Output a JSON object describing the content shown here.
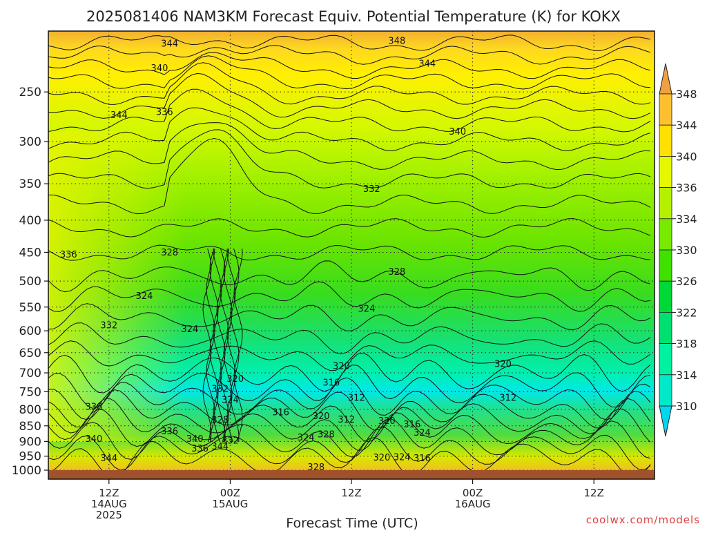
{
  "header": {
    "title": "2025081406 NAM3KM Forecast Equiv. Potential Temperature (K) for KOKX"
  },
  "footer": {
    "credit": "coolwx.com/models"
  },
  "chart_data": {
    "type": "heatmap",
    "title": "2025081406 NAM3KM Forecast Equiv. Potential Temperature (K) for KOKX",
    "xlabel": "Forecast Time (UTC)",
    "ylabel": "",
    "x_ticks": [
      {
        "lines": [
          "12Z",
          "14AUG",
          "2025"
        ],
        "hour": 6
      },
      {
        "lines": [
          "00Z",
          "15AUG"
        ],
        "hour": 18
      },
      {
        "lines": [
          "12Z"
        ],
        "hour": 30
      },
      {
        "lines": [
          "00Z",
          "16AUG"
        ],
        "hour": 42
      },
      {
        "lines": [
          "12Z"
        ],
        "hour": 54
      }
    ],
    "x_range_hours": [
      0,
      60
    ],
    "y_scale": "log-pressure",
    "y_ticks": [
      250,
      300,
      350,
      400,
      450,
      500,
      550,
      600,
      650,
      700,
      750,
      800,
      850,
      900,
      950,
      1000
    ],
    "y_range_hpa": [
      200,
      1000
    ],
    "grid": true,
    "colorbar": {
      "levels": [
        310,
        314,
        318,
        322,
        326,
        330,
        334,
        336,
        340,
        344,
        348
      ],
      "colors": [
        "#00d8f0",
        "#00eaca",
        "#00f2a0",
        "#00e070",
        "#00d838",
        "#40e000",
        "#78ea00",
        "#b4f000",
        "#e6f800",
        "#ffe000",
        "#ffc030",
        "#f0a040"
      ],
      "units": "K"
    },
    "contour_labels": [
      {
        "text": "344",
        "hour": 12.0,
        "hpa": 210
      },
      {
        "text": "348",
        "hour": 34.5,
        "hpa": 208
      },
      {
        "text": "344",
        "hour": 37.5,
        "hpa": 226
      },
      {
        "text": "340",
        "hour": 11.0,
        "hpa": 230
      },
      {
        "text": "344",
        "hour": 7.0,
        "hpa": 273
      },
      {
        "text": "336",
        "hour": 11.5,
        "hpa": 270
      },
      {
        "text": "340",
        "hour": 40.5,
        "hpa": 290
      },
      {
        "text": "332",
        "hour": 32.0,
        "hpa": 358
      },
      {
        "text": "336",
        "hour": 2.0,
        "hpa": 455
      },
      {
        "text": "328",
        "hour": 12.0,
        "hpa": 452
      },
      {
        "text": "328",
        "hour": 34.5,
        "hpa": 485
      },
      {
        "text": "324",
        "hour": 9.5,
        "hpa": 530
      },
      {
        "text": "324",
        "hour": 31.5,
        "hpa": 555
      },
      {
        "text": "332",
        "hour": 6.0,
        "hpa": 590
      },
      {
        "text": "324",
        "hour": 14.0,
        "hpa": 598
      },
      {
        "text": "320",
        "hour": 29.0,
        "hpa": 685
      },
      {
        "text": "320",
        "hour": 45.0,
        "hpa": 680
      },
      {
        "text": "320",
        "hour": 18.5,
        "hpa": 718
      },
      {
        "text": "316",
        "hour": 28.0,
        "hpa": 728
      },
      {
        "text": "332",
        "hour": 17.0,
        "hpa": 745
      },
      {
        "text": "312",
        "hour": 30.5,
        "hpa": 770
      },
      {
        "text": "312",
        "hour": 45.5,
        "hpa": 770
      },
      {
        "text": "324",
        "hour": 18.0,
        "hpa": 775
      },
      {
        "text": "336",
        "hour": 4.5,
        "hpa": 795
      },
      {
        "text": "316",
        "hour": 23.0,
        "hpa": 812
      },
      {
        "text": "320",
        "hour": 27.0,
        "hpa": 823
      },
      {
        "text": "328",
        "hour": 17.0,
        "hpa": 835
      },
      {
        "text": "312",
        "hour": 29.5,
        "hpa": 833
      },
      {
        "text": "320",
        "hour": 33.5,
        "hpa": 838
      },
      {
        "text": "316",
        "hour": 36.0,
        "hpa": 848
      },
      {
        "text": "336",
        "hour": 12.0,
        "hpa": 870
      },
      {
        "text": "324",
        "hour": 37.0,
        "hpa": 875
      },
      {
        "text": "328",
        "hour": 27.5,
        "hpa": 880
      },
      {
        "text": "324",
        "hour": 25.5,
        "hpa": 890
      },
      {
        "text": "340",
        "hour": 4.5,
        "hpa": 895
      },
      {
        "text": "340",
        "hour": 14.5,
        "hpa": 895
      },
      {
        "text": "332",
        "hour": 18.0,
        "hpa": 900
      },
      {
        "text": "344",
        "hour": 17.0,
        "hpa": 920
      },
      {
        "text": "336",
        "hour": 15.0,
        "hpa": 927
      },
      {
        "text": "344",
        "hour": 6.0,
        "hpa": 960
      },
      {
        "text": "320",
        "hour": 33.0,
        "hpa": 958
      },
      {
        "text": "324",
        "hour": 35.0,
        "hpa": 957
      },
      {
        "text": "316",
        "hour": 37.0,
        "hpa": 960
      },
      {
        "text": "328",
        "hour": 26.5,
        "hpa": 992
      }
    ]
  }
}
